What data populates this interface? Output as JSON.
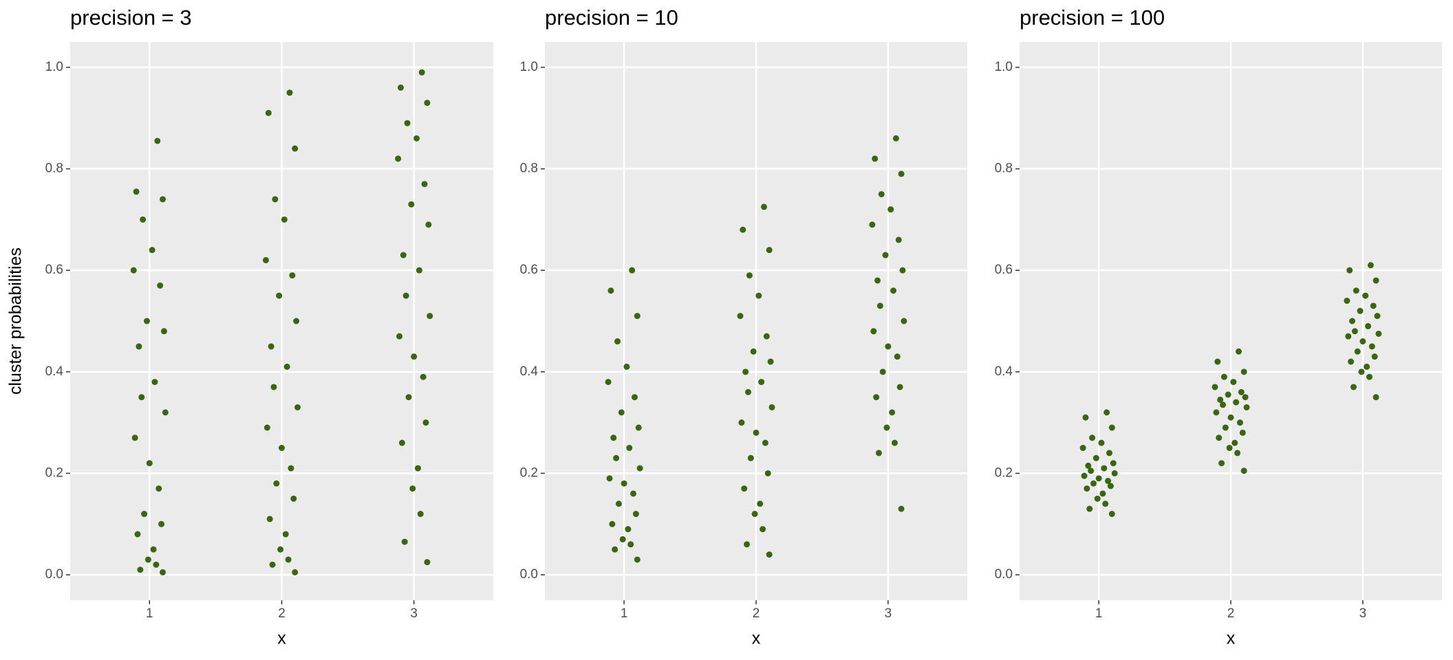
{
  "chart_data": [
    {
      "type": "scatter",
      "title": "precision =  3",
      "xlabel": "x",
      "ylabel": "cluster probabilities",
      "color": "#3b6611",
      "grid": true,
      "xlim": [
        0.4,
        3.6
      ],
      "xticks": [
        1,
        2,
        3
      ],
      "ylim": [
        -0.05,
        1.05
      ],
      "yticks": [
        {
          "value": 0,
          "label": "0.0"
        },
        {
          "value": 0.2,
          "label": "0.2"
        },
        {
          "value": 0.4,
          "label": "0.4"
        },
        {
          "value": 0.6,
          "label": "0.6"
        },
        {
          "value": 0.8,
          "label": "0.8"
        },
        {
          "value": 1,
          "label": "1.0"
        }
      ],
      "x": [
        1.06,
        0.9,
        1.1,
        0.95,
        1.02,
        0.88,
        1.08,
        0.98,
        1.11,
        0.92,
        1.04,
        0.94,
        1.12,
        0.89,
        1.0,
        1.07,
        0.96,
        1.09,
        0.91,
        1.03,
        0.99,
        1.05,
        0.93,
        1.1,
        2.06,
        1.9,
        2.1,
        1.95,
        2.02,
        1.88,
        2.08,
        1.98,
        2.11,
        1.92,
        2.04,
        1.94,
        2.12,
        1.89,
        2.0,
        2.07,
        1.96,
        2.09,
        1.91,
        2.03,
        1.99,
        2.05,
        1.93,
        2.1,
        3.06,
        2.9,
        3.1,
        2.95,
        3.02,
        2.88,
        3.08,
        2.98,
        3.11,
        2.92,
        3.04,
        2.94,
        3.12,
        2.89,
        3.0,
        3.07,
        2.96,
        3.09,
        2.91,
        3.03,
        2.99,
        3.05,
        2.93,
        3.1
      ],
      "y": [
        0.855,
        0.755,
        0.74,
        0.7,
        0.64,
        0.6,
        0.57,
        0.5,
        0.48,
        0.45,
        0.38,
        0.35,
        0.32,
        0.27,
        0.22,
        0.17,
        0.12,
        0.1,
        0.08,
        0.05,
        0.03,
        0.02,
        0.01,
        0.005,
        0.95,
        0.91,
        0.84,
        0.74,
        0.7,
        0.62,
        0.59,
        0.55,
        0.5,
        0.45,
        0.41,
        0.37,
        0.33,
        0.29,
        0.25,
        0.21,
        0.18,
        0.15,
        0.11,
        0.08,
        0.05,
        0.03,
        0.02,
        0.005,
        0.99,
        0.96,
        0.93,
        0.89,
        0.86,
        0.82,
        0.77,
        0.73,
        0.69,
        0.63,
        0.6,
        0.55,
        0.51,
        0.47,
        0.43,
        0.39,
        0.35,
        0.3,
        0.26,
        0.21,
        0.17,
        0.12,
        0.065,
        0.025
      ]
    },
    {
      "type": "scatter",
      "title": "precision =  10",
      "xlabel": "x",
      "color": "#3b6611",
      "grid": true,
      "xlim": [
        0.4,
        3.6
      ],
      "xticks": [
        1,
        2,
        3
      ],
      "ylim": [
        -0.05,
        1.05
      ],
      "yticks": [
        {
          "value": 0,
          "label": "0.0"
        },
        {
          "value": 0.2,
          "label": "0.2"
        },
        {
          "value": 0.4,
          "label": "0.4"
        },
        {
          "value": 0.6,
          "label": "0.6"
        },
        {
          "value": 0.8,
          "label": "0.8"
        },
        {
          "value": 1,
          "label": "1.0"
        }
      ],
      "x": [
        1.06,
        0.9,
        1.1,
        0.95,
        1.02,
        0.88,
        1.08,
        0.98,
        1.11,
        0.92,
        1.04,
        0.94,
        1.12,
        0.89,
        1.0,
        1.07,
        0.96,
        1.09,
        0.91,
        1.03,
        0.99,
        1.05,
        0.93,
        1.1,
        2.06,
        1.9,
        2.1,
        1.95,
        2.02,
        1.88,
        2.08,
        1.98,
        2.11,
        1.92,
        2.04,
        1.94,
        2.12,
        1.89,
        2.0,
        2.07,
        1.96,
        2.09,
        1.91,
        2.03,
        1.99,
        2.05,
        1.93,
        2.1,
        3.06,
        2.9,
        3.1,
        2.95,
        3.02,
        2.88,
        3.08,
        2.98,
        3.11,
        2.92,
        3.04,
        2.94,
        3.12,
        2.89,
        3.0,
        3.07,
        2.96,
        3.09,
        2.91,
        3.03,
        2.99,
        3.05,
        2.93,
        3.1
      ],
      "y": [
        0.6,
        0.56,
        0.51,
        0.46,
        0.41,
        0.38,
        0.35,
        0.32,
        0.29,
        0.27,
        0.25,
        0.23,
        0.21,
        0.19,
        0.18,
        0.16,
        0.14,
        0.12,
        0.1,
        0.09,
        0.07,
        0.06,
        0.05,
        0.03,
        0.725,
        0.68,
        0.64,
        0.59,
        0.55,
        0.51,
        0.47,
        0.44,
        0.42,
        0.4,
        0.38,
        0.36,
        0.33,
        0.3,
        0.28,
        0.26,
        0.23,
        0.2,
        0.17,
        0.14,
        0.12,
        0.09,
        0.06,
        0.04,
        0.86,
        0.82,
        0.79,
        0.75,
        0.72,
        0.69,
        0.66,
        0.63,
        0.6,
        0.58,
        0.56,
        0.53,
        0.5,
        0.48,
        0.45,
        0.43,
        0.4,
        0.37,
        0.35,
        0.32,
        0.29,
        0.26,
        0.24,
        0.13
      ]
    },
    {
      "type": "scatter",
      "title": "precision =  100",
      "xlabel": "x",
      "color": "#3b6611",
      "grid": true,
      "xlim": [
        0.4,
        3.6
      ],
      "xticks": [
        1,
        2,
        3
      ],
      "ylim": [
        -0.05,
        1.05
      ],
      "yticks": [
        {
          "value": 0,
          "label": "0.0"
        },
        {
          "value": 0.2,
          "label": "0.2"
        },
        {
          "value": 0.4,
          "label": "0.4"
        },
        {
          "value": 0.6,
          "label": "0.6"
        },
        {
          "value": 0.8,
          "label": "0.8"
        },
        {
          "value": 1,
          "label": "1.0"
        }
      ],
      "x": [
        1.06,
        0.9,
        1.1,
        0.95,
        1.02,
        0.88,
        1.08,
        0.98,
        1.11,
        0.92,
        1.04,
        0.94,
        1.12,
        0.89,
        1.0,
        1.07,
        0.96,
        1.09,
        0.91,
        1.03,
        0.99,
        1.05,
        0.93,
        1.1,
        2.06,
        1.9,
        2.1,
        1.95,
        2.02,
        1.88,
        2.08,
        1.98,
        2.11,
        1.92,
        2.04,
        1.94,
        2.12,
        1.89,
        2.0,
        2.07,
        1.96,
        2.09,
        1.91,
        2.03,
        1.99,
        2.05,
        1.93,
        2.1,
        3.06,
        2.9,
        3.1,
        2.95,
        3.02,
        2.88,
        3.08,
        2.98,
        3.11,
        2.92,
        3.04,
        2.94,
        3.12,
        2.89,
        3.0,
        3.07,
        2.96,
        3.09,
        2.91,
        3.03,
        2.99,
        3.05,
        2.93,
        3.1
      ],
      "y": [
        0.32,
        0.31,
        0.29,
        0.27,
        0.26,
        0.25,
        0.24,
        0.23,
        0.22,
        0.215,
        0.21,
        0.205,
        0.2,
        0.195,
        0.19,
        0.185,
        0.18,
        0.175,
        0.17,
        0.16,
        0.15,
        0.14,
        0.13,
        0.12,
        0.44,
        0.42,
        0.4,
        0.39,
        0.38,
        0.37,
        0.36,
        0.355,
        0.35,
        0.345,
        0.34,
        0.335,
        0.33,
        0.32,
        0.31,
        0.3,
        0.29,
        0.28,
        0.27,
        0.26,
        0.25,
        0.24,
        0.22,
        0.205,
        0.61,
        0.6,
        0.58,
        0.56,
        0.55,
        0.54,
        0.53,
        0.52,
        0.51,
        0.5,
        0.49,
        0.48,
        0.475,
        0.47,
        0.46,
        0.45,
        0.44,
        0.43,
        0.42,
        0.41,
        0.4,
        0.39,
        0.37,
        0.35
      ]
    }
  ]
}
